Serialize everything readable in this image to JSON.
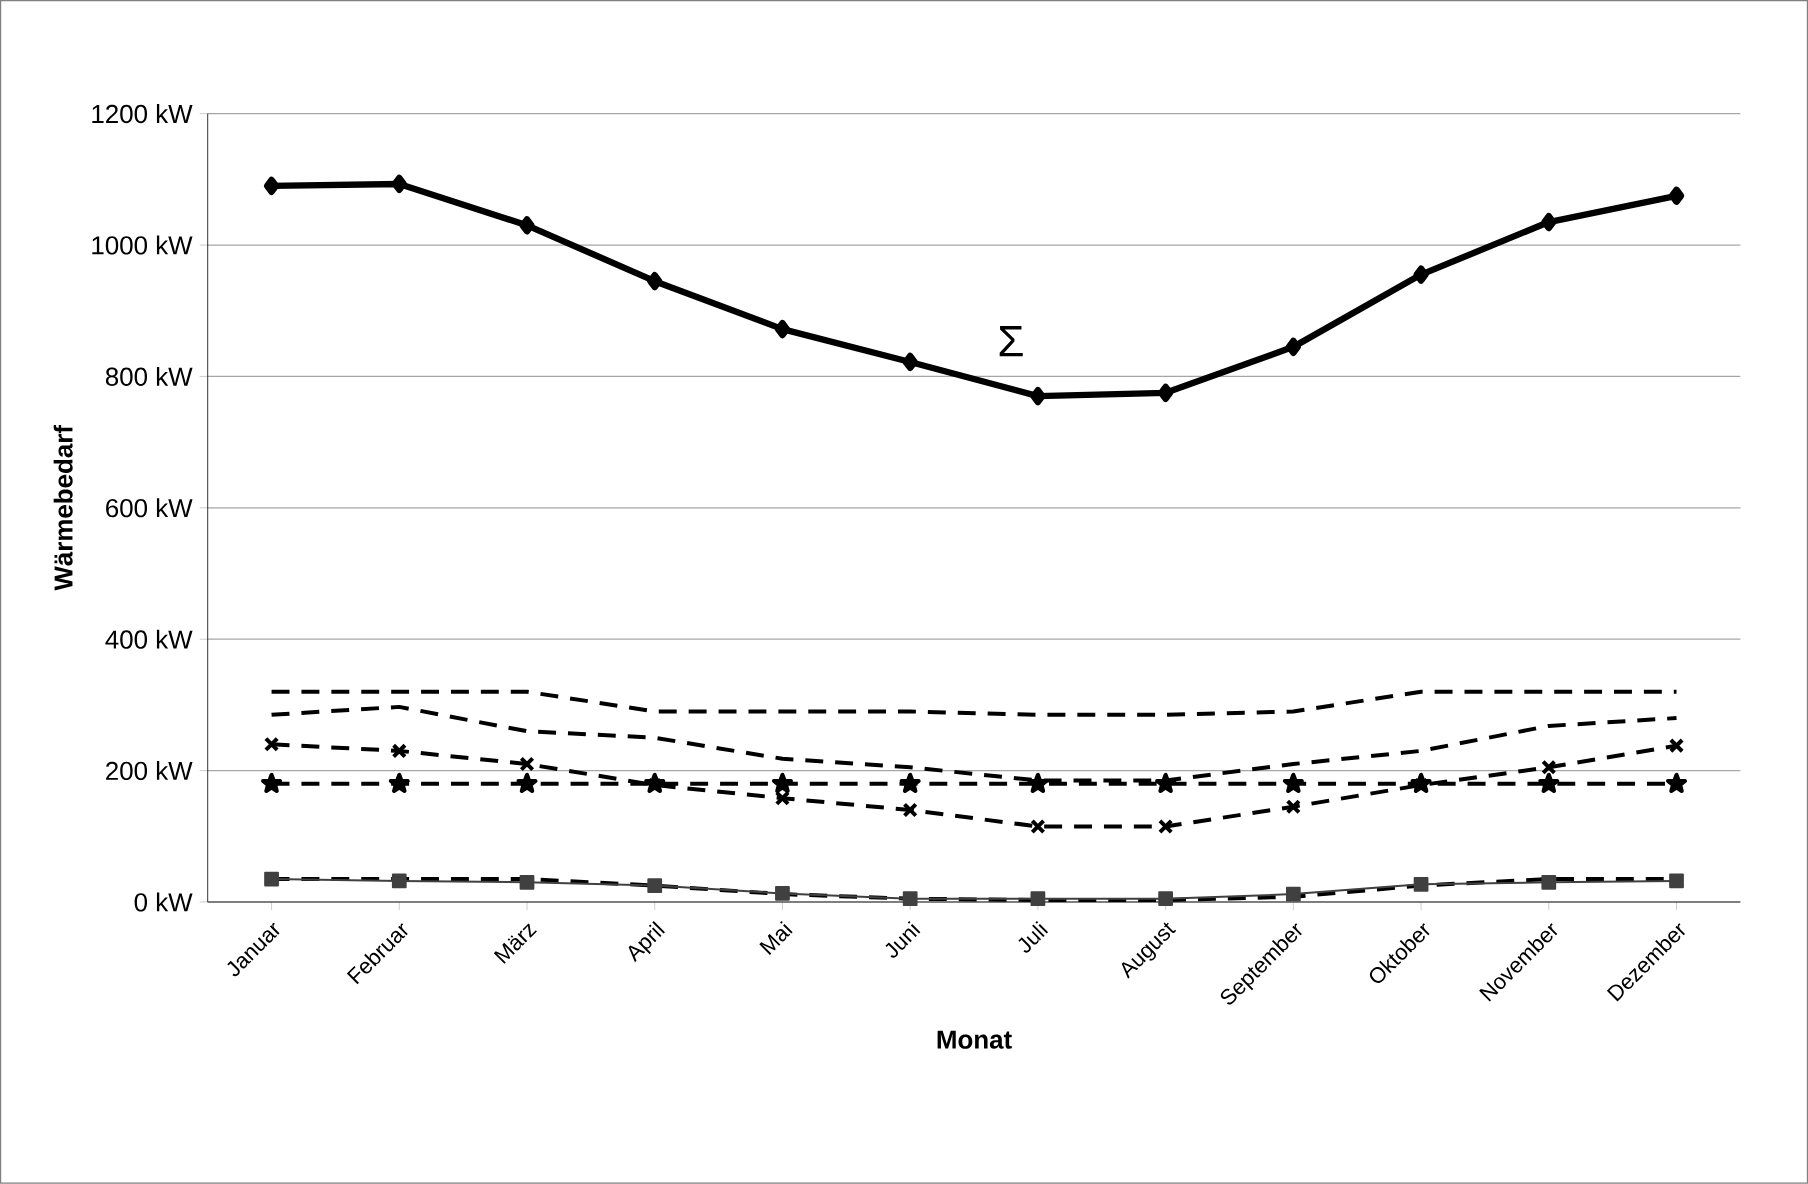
{
  "chart_data": {
    "type": "line",
    "xlabel": "Monat",
    "ylabel": "Wärmebedarf",
    "categories": [
      "Januar",
      "Februar",
      "März",
      "April",
      "Mai",
      "Juni",
      "Juli",
      "August",
      "September",
      "Oktober",
      "November",
      "Dezember"
    ],
    "ylim": [
      0,
      1200
    ],
    "yticks": [
      {
        "value": 0,
        "label": "0 kW"
      },
      {
        "value": 200,
        "label": "200 kW"
      },
      {
        "value": 400,
        "label": "400 kW"
      },
      {
        "value": 600,
        "label": "600 kW"
      },
      {
        "value": 800,
        "label": "800 kW"
      },
      {
        "value": 1000,
        "label": "1000 kW"
      },
      {
        "value": 1200,
        "label": "1200 kW"
      }
    ],
    "grid": "y",
    "legend": false,
    "series": [
      {
        "name": "Σ",
        "color": "#000000",
        "marker": "diamond",
        "line_style": "solid",
        "values": [
          1090,
          1093,
          1030,
          945,
          872,
          822,
          770,
          775,
          845,
          955,
          1035,
          1075
        ]
      },
      {
        "color": "#000000",
        "marker": "none",
        "line_style": "dashed",
        "values": [
          320,
          320,
          320,
          290,
          290,
          290,
          285,
          285,
          290,
          320,
          320,
          320
        ]
      },
      {
        "color": "#000000",
        "marker": "none",
        "line_style": "dashed",
        "values": [
          285,
          297,
          260,
          250,
          218,
          205,
          185,
          185,
          210,
          230,
          268,
          280
        ]
      },
      {
        "color": "#000000",
        "marker": "cross",
        "line_style": "dashed",
        "values": [
          240,
          230,
          210,
          178,
          158,
          140,
          115,
          115,
          145,
          178,
          205,
          238
        ]
      },
      {
        "color": "#000000",
        "marker": "star",
        "line_style": "dashed",
        "values": [
          180,
          180,
          180,
          180,
          180,
          180,
          180,
          180,
          180,
          180,
          180,
          180
        ]
      },
      {
        "color": "#000000",
        "marker": "none",
        "line_style": "dashed",
        "values": [
          35,
          35,
          35,
          25,
          12,
          5,
          3,
          3,
          8,
          25,
          35,
          35
        ]
      },
      {
        "color": "#404040",
        "marker": "square",
        "line_style": "solid",
        "values": [
          35,
          32,
          30,
          25,
          13,
          5,
          5,
          5,
          12,
          27,
          30,
          32
        ]
      }
    ]
  }
}
